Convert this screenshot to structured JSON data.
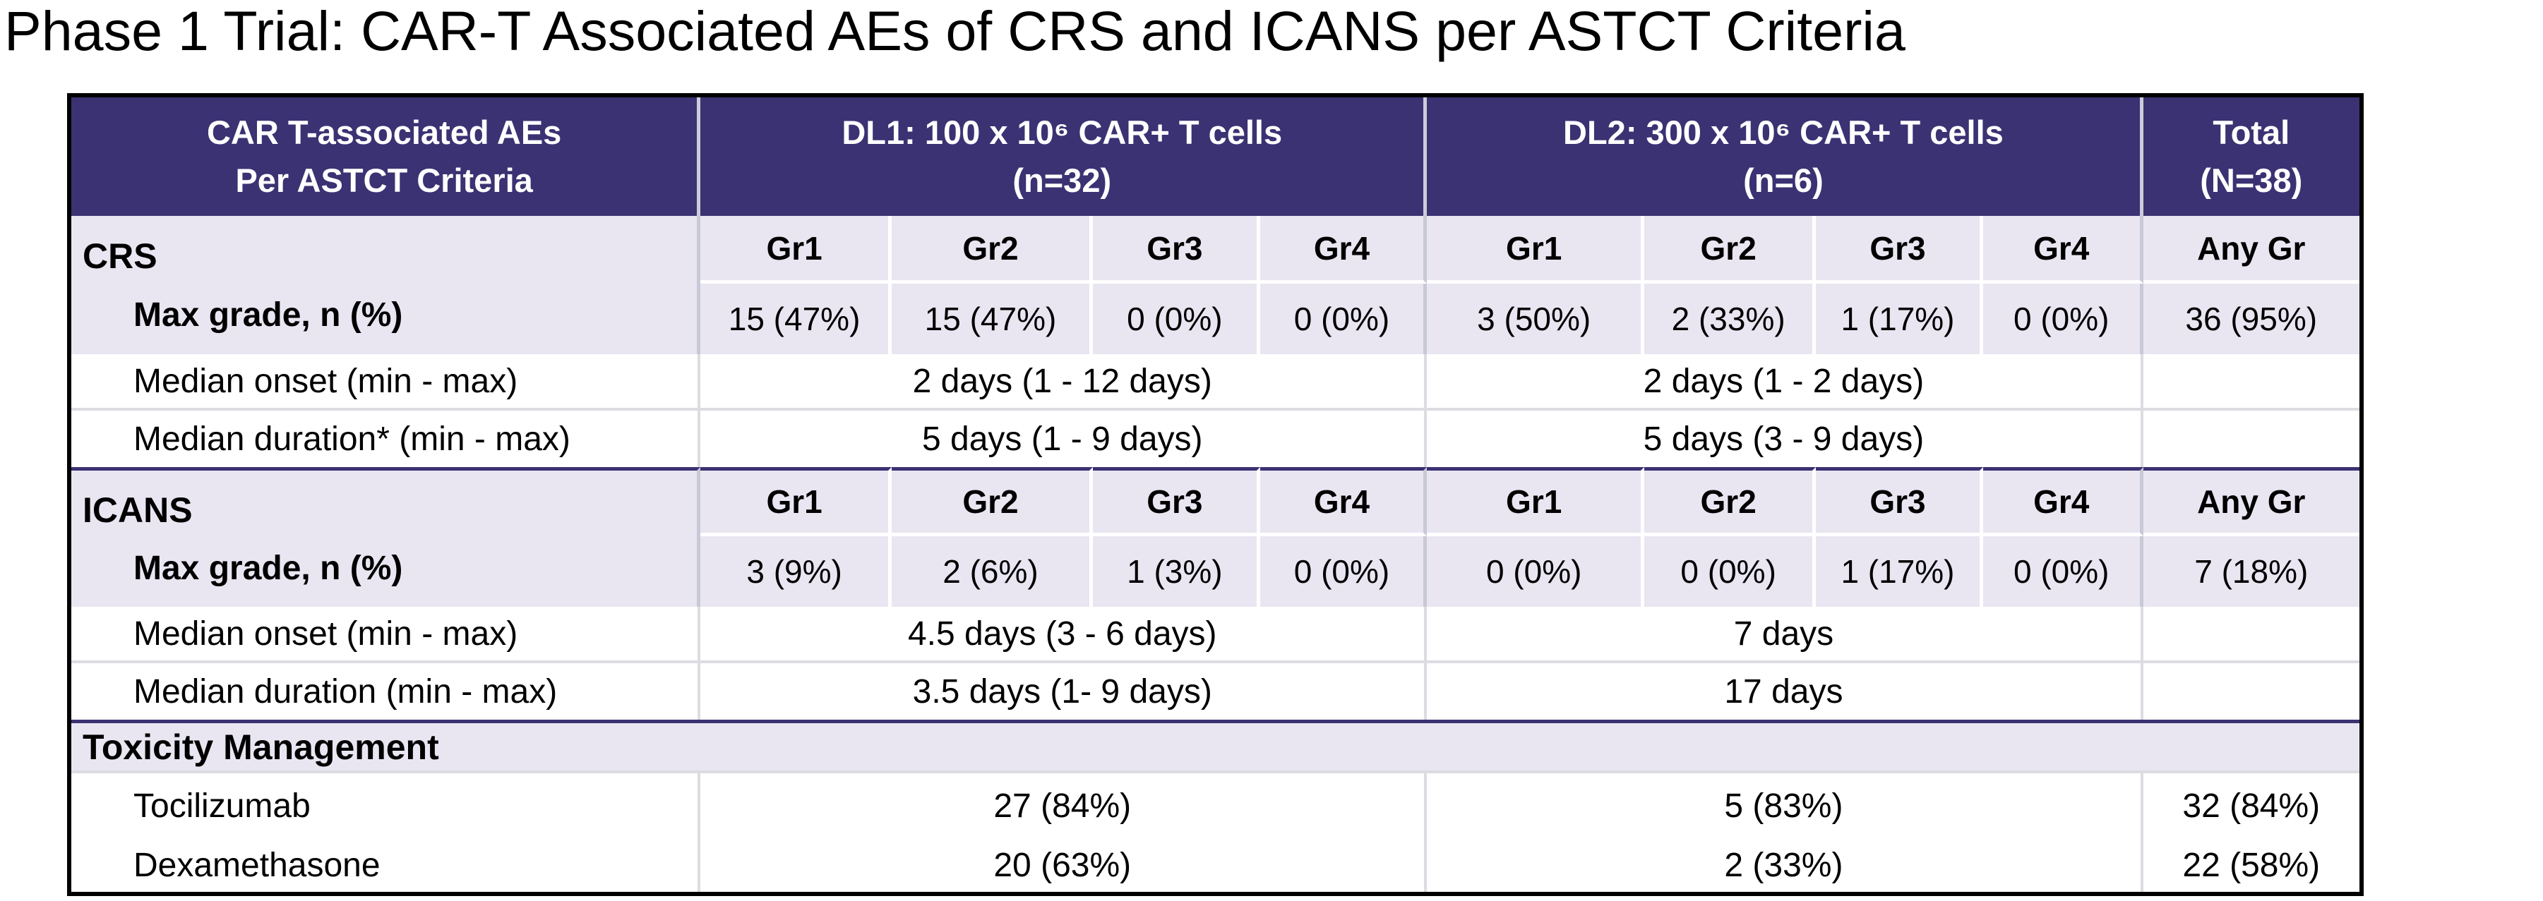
{
  "title": "Phase 1 Trial: CAR-T Associated AEs of CRS and ICANS per ASTCT Criteria",
  "colors": {
    "header_bg": "#3B3273",
    "band_bg": "#E9E6F2",
    "section_divider": "#3B3273",
    "grid_line": "#DCDCE2",
    "outer_border": "#000000"
  },
  "table": {
    "header": {
      "col1_line1": "CAR T-associated AEs",
      "col1_line2": "Per ASTCT Criteria",
      "dl1_line1": "DL1: 100 x 10⁶ CAR+ T cells",
      "dl1_line2": "(n=32)",
      "dl2_line1": "DL2: 300 x 10⁶ CAR+ T cells",
      "dl2_line2": "(n=6)",
      "total_line1": "Total",
      "total_line2": "(N=38)"
    },
    "crs": {
      "section_label": "CRS",
      "max_grade_label": "Max grade, n (%)",
      "grade_headers": [
        "Gr1",
        "Gr2",
        "Gr3",
        "Gr4",
        "Gr1",
        "Gr2",
        "Gr3",
        "Gr4",
        "Any Gr"
      ],
      "max_grade_values": [
        "15 (47%)",
        "15 (47%)",
        "0 (0%)",
        "0 (0%)",
        "3 (50%)",
        "2 (33%)",
        "1 (17%)",
        "0 (0%)",
        "36 (95%)"
      ],
      "onset_label": "Median onset (min - max)",
      "onset_dl1": "2 days (1 - 12 days)",
      "onset_dl2": "2 days (1 - 2 days)",
      "onset_total": "",
      "duration_label": "Median duration* (min - max)",
      "duration_dl1": "5 days (1 - 9 days)",
      "duration_dl2": "5 days (3 - 9 days)",
      "duration_total": ""
    },
    "icans": {
      "section_label": "ICANS",
      "max_grade_label": "Max grade, n (%)",
      "grade_headers": [
        "Gr1",
        "Gr2",
        "Gr3",
        "Gr4",
        "Gr1",
        "Gr2",
        "Gr3",
        "Gr4",
        "Any Gr"
      ],
      "max_grade_values": [
        "3 (9%)",
        "2 (6%)",
        "1 (3%)",
        "0 (0%)",
        "0 (0%)",
        "0 (0%)",
        "1 (17%)",
        "0 (0%)",
        "7 (18%)"
      ],
      "onset_label": "Median onset (min - max)",
      "onset_dl1": "4.5 days (3 - 6 days)",
      "onset_dl2": "7 days",
      "onset_total": "",
      "duration_label": "Median duration (min - max)",
      "duration_dl1": "3.5 days (1- 9 days)",
      "duration_dl2": "17 days",
      "duration_total": ""
    },
    "tox": {
      "section_label": "Toxicity Management",
      "rows": [
        {
          "label": "Tocilizumab",
          "dl1": "27 (84%)",
          "dl2": "5 (83%)",
          "total": "32 (84%)"
        },
        {
          "label": "Dexamethasone",
          "dl1": "20 (63%)",
          "dl2": "2 (33%)",
          "total": "22 (58%)"
        }
      ]
    }
  }
}
